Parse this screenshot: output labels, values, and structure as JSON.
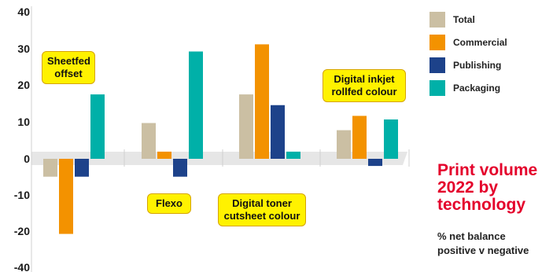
{
  "chart_data": {
    "type": "bar",
    "title": "Print volume\n2022 by\ntechnology",
    "subtitle": "% net balance\npositive v negative",
    "categories": [
      "Sheetfed offset",
      "Flexo",
      "Digital toner cutsheet colour",
      "Digital inkjet rollfed colour"
    ],
    "category_labels": [
      "Sheetfed\noffset",
      "Flexo",
      "Digital toner\ncutsheet colour",
      "Digital inkjet\nrollfed colour"
    ],
    "series": [
      {
        "name": "Total",
        "color": "#cbbfa3",
        "values": [
          -5,
          10,
          18,
          8
        ]
      },
      {
        "name": "Commercial",
        "color": "#f39200",
        "values": [
          -21,
          2,
          32,
          12
        ]
      },
      {
        "name": "Publishing",
        "color": "#1d428a",
        "values": [
          -5,
          -5,
          15,
          -2
        ]
      },
      {
        "name": "Packaging",
        "color": "#00b0a8",
        "values": [
          18,
          30,
          2,
          11
        ]
      }
    ],
    "yticks": [
      40,
      30,
      20,
      10,
      0,
      -10,
      -20,
      -40
    ],
    "ylabel": "",
    "xlabel": "",
    "legend_position": "top-right"
  }
}
